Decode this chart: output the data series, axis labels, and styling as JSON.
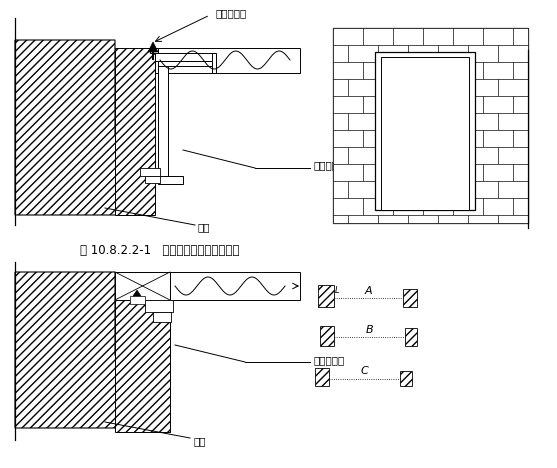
{
  "bg_color": "#ffffff",
  "lc": "#000000",
  "title": "图 10.8.2.2-1   钢木质防火门结构安装图",
  "label_dading": "打钉拉铁皮",
  "label_gang": "钢防火门框",
  "label_qiang1": "墙体",
  "label_mumen": "防火木门框",
  "label_qiang2": "墙体",
  "label_A": "A",
  "label_B": "B",
  "label_C": "C",
  "label_L": "L"
}
